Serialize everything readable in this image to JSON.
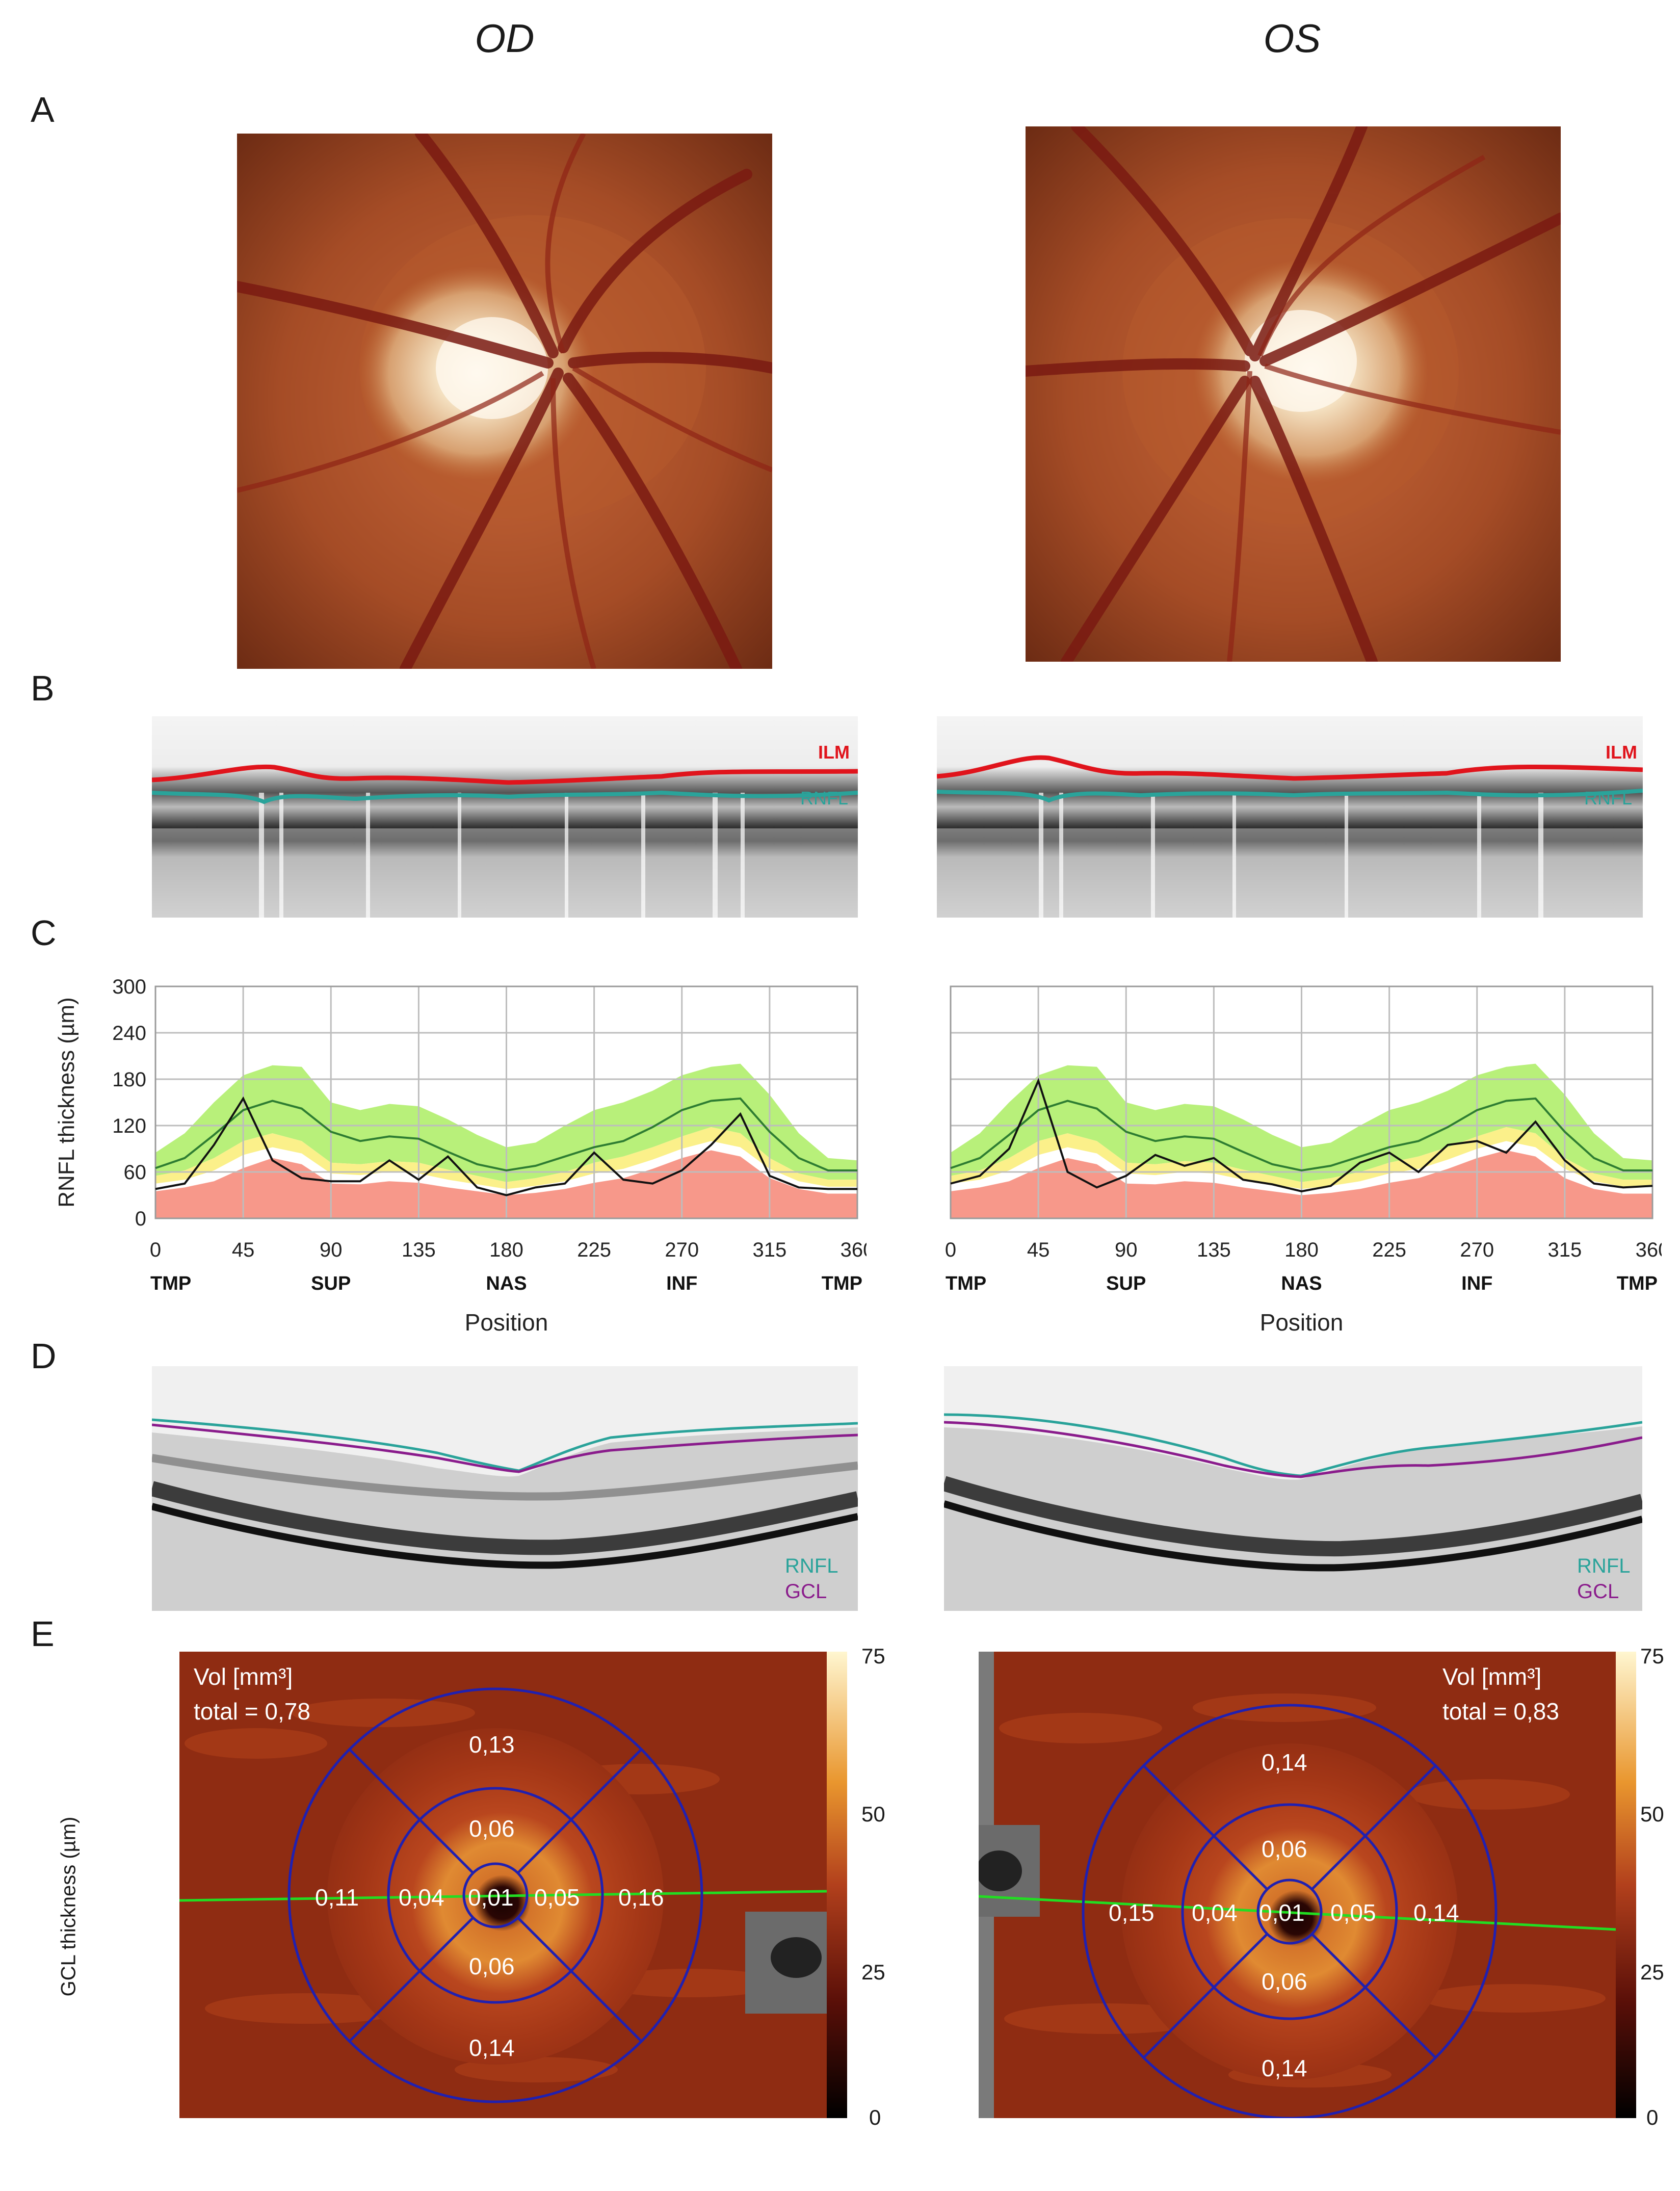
{
  "eyes": {
    "od": "OD",
    "os": "OS"
  },
  "panels": {
    "a": "A",
    "b": "B",
    "c": "C",
    "d": "D",
    "e": "E"
  },
  "oct_b": {
    "ilm": "ILM",
    "rnfl": "RNFL"
  },
  "oct_d": {
    "rnfl": "RNFL",
    "gcl": "GCL"
  },
  "colors": {
    "ilm": "#e0141c",
    "rnfl": "#2aa39a",
    "gcl": "#8a1c8c",
    "normal_green": "#b8f07a",
    "borderline_yellow": "#fbf08a",
    "below_red": "#f7988a",
    "sector_lines": "#2020b0",
    "scan_line": "#22dd22"
  },
  "chart_data": [
    {
      "type": "line",
      "eye": "OD",
      "ylabel": "RNFL thickness (µm)",
      "xlabel": "Position",
      "ylim": [
        0,
        300
      ],
      "xlim": [
        0,
        360
      ],
      "yticks": [
        "0",
        "60",
        "120",
        "180",
        "240",
        "300"
      ],
      "xticks": [
        "0",
        "45",
        "90",
        "135",
        "180",
        "225",
        "270",
        "315",
        "360"
      ],
      "sectors": [
        "TMP",
        "SUP",
        "NAS",
        "INF",
        "TMP"
      ],
      "sector_positions": [
        0,
        90,
        180,
        270,
        360
      ],
      "grid": true,
      "x": [
        0,
        15,
        30,
        45,
        60,
        75,
        90,
        105,
        120,
        135,
        150,
        165,
        180,
        195,
        210,
        225,
        240,
        255,
        270,
        285,
        300,
        315,
        330,
        345,
        360
      ],
      "bands": {
        "normal_upper": [
          85,
          110,
          150,
          185,
          198,
          196,
          150,
          140,
          148,
          145,
          128,
          108,
          92,
          98,
          120,
          140,
          150,
          165,
          185,
          196,
          200,
          160,
          110,
          78,
          75
        ],
        "normal_lower": [
          55,
          62,
          78,
          100,
          110,
          100,
          72,
          70,
          74,
          72,
          63,
          55,
          47,
          52,
          60,
          72,
          80,
          92,
          106,
          118,
          110,
          78,
          58,
          50,
          50
        ],
        "borderline_lower": [
          45,
          50,
          62,
          82,
          92,
          84,
          58,
          56,
          60,
          58,
          50,
          44,
          38,
          42,
          48,
          58,
          64,
          76,
          90,
          100,
          92,
          64,
          48,
          41,
          41
        ],
        "below_upper": [
          35,
          40,
          48,
          65,
          78,
          70,
          45,
          44,
          48,
          46,
          40,
          35,
          30,
          33,
          38,
          46,
          52,
          64,
          78,
          88,
          80,
          52,
          38,
          32,
          32
        ]
      },
      "series": [
        {
          "name": "",
          "role": "normative mean",
          "values": [
            65,
            78,
            108,
            140,
            152,
            142,
            112,
            100,
            106,
            103,
            86,
            70,
            62,
            68,
            80,
            92,
            100,
            118,
            140,
            152,
            155,
            112,
            78,
            62,
            62
          ]
        },
        {
          "name": "",
          "role": "patient",
          "values": [
            38,
            45,
            95,
            155,
            75,
            52,
            48,
            48,
            75,
            50,
            80,
            40,
            30,
            40,
            45,
            85,
            50,
            45,
            62,
            95,
            135,
            55,
            40,
            38,
            38
          ]
        }
      ]
    },
    {
      "type": "line",
      "eye": "OS",
      "xlabel": "Position",
      "ylim": [
        0,
        300
      ],
      "xlim": [
        0,
        360
      ],
      "xticks": [
        "0",
        "45",
        "90",
        "135",
        "180",
        "225",
        "270",
        "315",
        "360"
      ],
      "sectors": [
        "TMP",
        "SUP",
        "NAS",
        "INF",
        "TMP"
      ],
      "sector_positions": [
        0,
        90,
        180,
        270,
        360
      ],
      "grid": true,
      "x": [
        0,
        15,
        30,
        45,
        60,
        75,
        90,
        105,
        120,
        135,
        150,
        165,
        180,
        195,
        210,
        225,
        240,
        255,
        270,
        285,
        300,
        315,
        330,
        345,
        360
      ],
      "bands": {
        "normal_upper": [
          85,
          110,
          150,
          185,
          198,
          196,
          150,
          140,
          148,
          145,
          128,
          108,
          92,
          98,
          120,
          140,
          150,
          165,
          185,
          196,
          200,
          160,
          110,
          78,
          75
        ],
        "normal_lower": [
          55,
          62,
          78,
          100,
          110,
          100,
          72,
          70,
          74,
          72,
          63,
          55,
          47,
          52,
          60,
          72,
          80,
          92,
          106,
          118,
          110,
          78,
          58,
          50,
          50
        ],
        "borderline_lower": [
          45,
          50,
          62,
          82,
          92,
          84,
          58,
          56,
          60,
          58,
          50,
          44,
          38,
          42,
          48,
          58,
          64,
          76,
          90,
          100,
          92,
          64,
          48,
          41,
          41
        ],
        "below_upper": [
          35,
          40,
          48,
          65,
          78,
          70,
          45,
          44,
          48,
          46,
          40,
          35,
          30,
          33,
          38,
          46,
          52,
          64,
          78,
          88,
          80,
          52,
          38,
          32,
          32
        ]
      },
      "series": [
        {
          "name": "",
          "role": "normative mean",
          "values": [
            65,
            78,
            108,
            140,
            152,
            142,
            112,
            100,
            106,
            103,
            86,
            70,
            62,
            68,
            80,
            92,
            100,
            118,
            140,
            152,
            155,
            112,
            78,
            62,
            62
          ]
        },
        {
          "name": "",
          "role": "patient",
          "values": [
            45,
            55,
            90,
            178,
            60,
            40,
            55,
            82,
            68,
            78,
            50,
            44,
            35,
            42,
            72,
            85,
            60,
            95,
            100,
            85,
            125,
            75,
            45,
            40,
            42
          ]
        }
      ]
    }
  ],
  "gcl_maps": {
    "colorbar_label": "GCL thickness (µm)",
    "colorbar_ticks": [
      "75",
      "50",
      "25",
      "0"
    ],
    "od": {
      "vol_label": "Vol [mm³]",
      "total": "total = 0,78",
      "sectors": {
        "outer_top": "0,13",
        "inner_top": "0,06",
        "outer_left": "0,11",
        "inner_left": "0,04",
        "center": "0,01",
        "inner_right": "0,05",
        "outer_right": "0,16",
        "inner_bottom": "0,06",
        "outer_bottom": "0,14"
      }
    },
    "os": {
      "vol_label": "Vol [mm³]",
      "total": "total = 0,83",
      "sectors": {
        "outer_top": "0,14",
        "inner_top": "0,06",
        "outer_left": "0,15",
        "inner_left": "0,04",
        "center": "0,01",
        "inner_right": "0,05",
        "outer_right": "0,14",
        "inner_bottom": "0,06",
        "outer_bottom": "0,14"
      }
    }
  }
}
